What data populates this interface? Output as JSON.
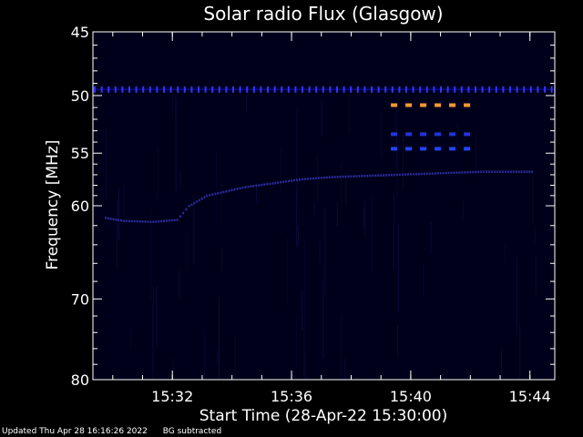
{
  "chart_data": {
    "type": "heatmap",
    "title": "Solar radio Flux (Glasgow)",
    "xlabel": "Start Time (28-Apr-22 15:30:00)",
    "ylabel": "Frequency [MHz]",
    "x_axis": {
      "unit": "time",
      "min": "15:29:20",
      "max": "15:44:50",
      "ticks": [
        "15:32",
        "15:36",
        "15:40",
        "15:44"
      ]
    },
    "y_axis": {
      "scale": "log",
      "min": 45,
      "max": 80,
      "inverted": true,
      "ticks": [
        45,
        50,
        55,
        60,
        70,
        80
      ]
    },
    "features": [
      {
        "kind": "interference-band",
        "freq_mhz": 49.5,
        "start": "15:29:20",
        "end": "15:44:50",
        "color": "#3333ff"
      },
      {
        "kind": "interference-band",
        "freq_mhz": 50.8,
        "start": "15:39:20",
        "end": "15:41:50",
        "color": "#ff9933"
      },
      {
        "kind": "interference-band",
        "freq_mhz": 53.3,
        "start": "15:39:20",
        "end": "15:41:50",
        "color": "#2233dd"
      },
      {
        "kind": "interference-band",
        "freq_mhz": 54.6,
        "start": "15:39:20",
        "end": "15:41:50",
        "color": "#2244ff"
      },
      {
        "kind": "emission-lane",
        "color": "#2a2a9a",
        "points": [
          [
            0.4,
            61.2
          ],
          [
            1.0,
            61.5
          ],
          [
            2.0,
            61.6
          ],
          [
            2.8,
            61.4
          ],
          [
            3.2,
            60.0
          ],
          [
            3.8,
            59.0
          ],
          [
            5.0,
            58.2
          ],
          [
            6.0,
            57.8
          ],
          [
            7.0,
            57.4
          ],
          [
            8.0,
            57.2
          ],
          [
            9.0,
            57.1
          ],
          [
            10.0,
            57.0
          ],
          [
            11.0,
            56.9
          ],
          [
            12.0,
            56.8
          ],
          [
            13.0,
            56.7
          ],
          [
            14.0,
            56.7
          ],
          [
            14.8,
            56.7
          ]
        ]
      }
    ]
  },
  "footer": {
    "updated": "Updated Thu Apr 28 16:16:26 2022",
    "note": "BG subtracted"
  }
}
